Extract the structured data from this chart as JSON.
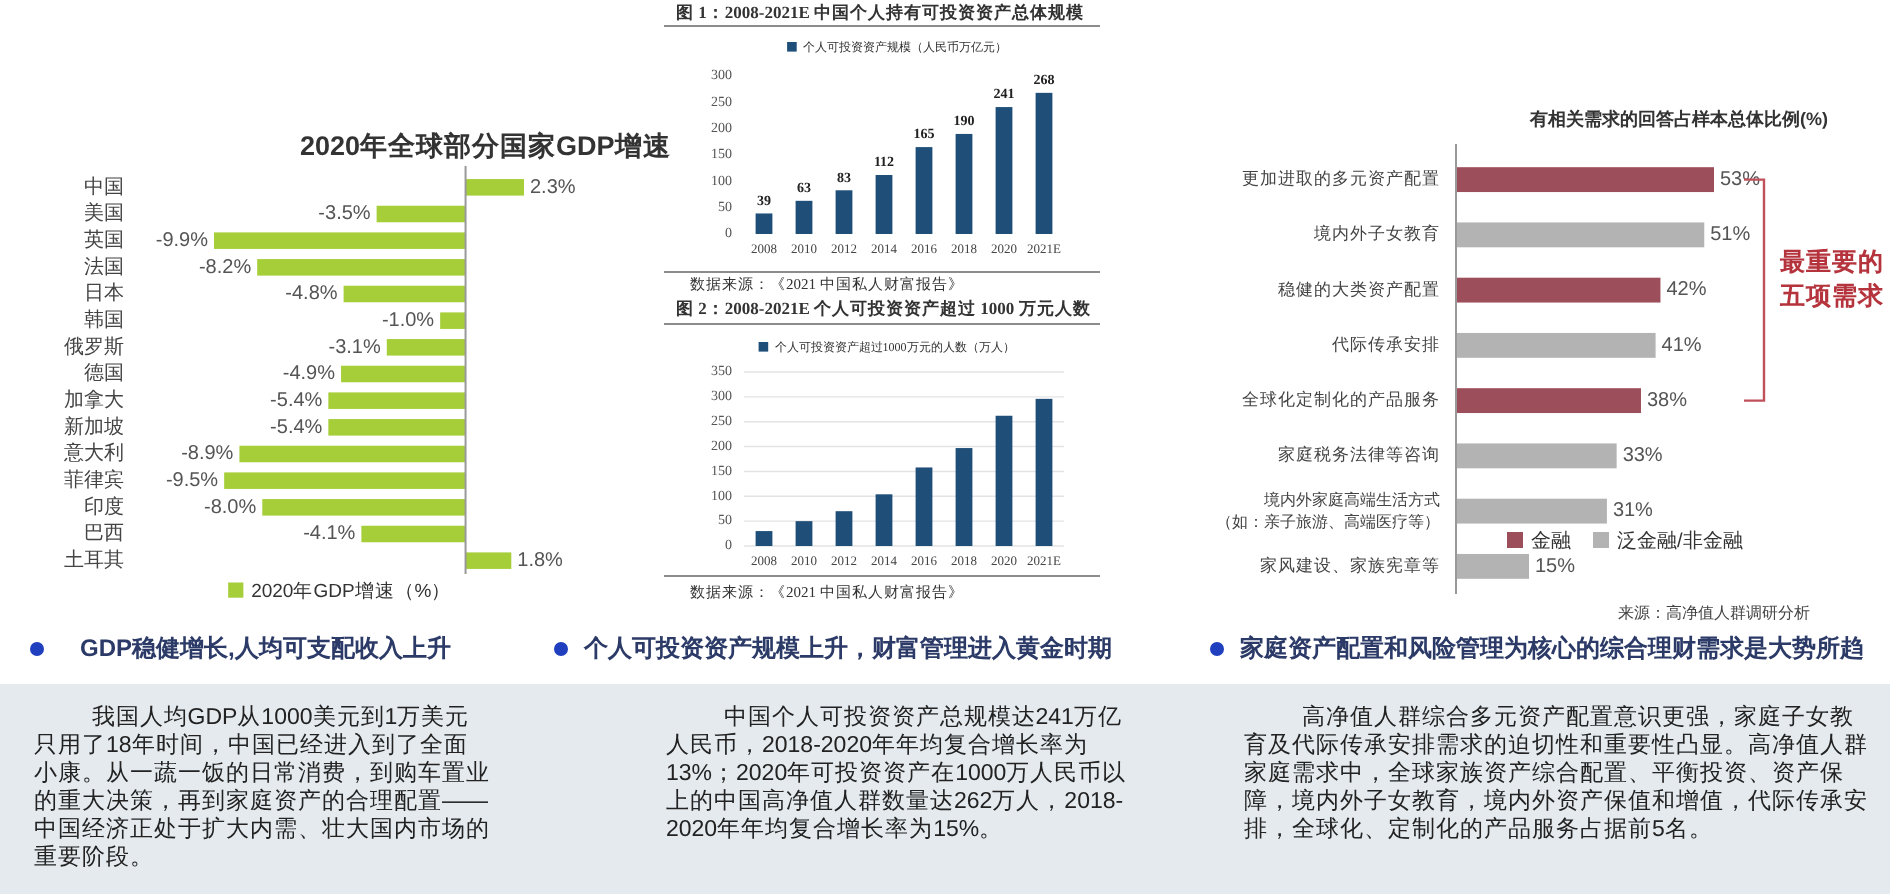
{
  "chart_data": [
    {
      "type": "bar",
      "orientation": "horizontal",
      "title": "2020年全球部分国家GDP增速",
      "categories": [
        "中国",
        "美国",
        "英国",
        "法国",
        "日本",
        "韩国",
        "俄罗斯",
        "德国",
        "加拿大",
        "新加坡",
        "意大利",
        "菲律宾",
        "印度",
        "巴西",
        "土耳其"
      ],
      "series": [
        {
          "name": "2020年GDP增速（%）",
          "color": "#a6ce39",
          "values": [
            2.3,
            -3.5,
            -9.9,
            -8.2,
            -4.8,
            -1.0,
            -3.1,
            -4.9,
            -5.4,
            -5.4,
            -8.9,
            -9.5,
            -8.0,
            -4.1,
            1.8
          ],
          "value_labels": [
            "2.3%",
            "-3.5%",
            "-9.9%",
            "-8.2%",
            "-4.8%",
            "-1.0%",
            "-3.1%",
            "-4.9%",
            "-5.4%",
            "-5.4%",
            "-8.9%",
            "-9.5%",
            "-8.0%",
            "-4.1%",
            "1.8%"
          ]
        }
      ],
      "legend": "bottom",
      "annotations": [
        "GDP稳健增长,人均可支配收入上升",
        "我国人均GDP从1000美元到1万美元只用了18年时间，中国已经进入到了全面小康。从一蔬一饭的日常消费，到购车置业的重大决策，再到家庭资产的合理配置——中国经济正处于扩大内需、壮大国内市场的重要阶段。"
      ]
    },
    {
      "type": "bar",
      "title": "图 1：2008-2021E 中国个人持有可投资资产总体规模",
      "categories": [
        "2008",
        "2010",
        "2012",
        "2014",
        "2016",
        "2018",
        "2020",
        "2021E"
      ],
      "series": [
        {
          "name": "个人可投资资产规模（人民币万亿元）",
          "color": "#1f4e79",
          "values": [
            39,
            63,
            83,
            112,
            165,
            190,
            241,
            268
          ]
        }
      ],
      "ylim": [
        0,
        300
      ],
      "yticks": [
        0,
        50,
        100,
        150,
        200,
        250,
        300
      ],
      "data_labels": true,
      "legend": "top",
      "annotations": [
        "数据来源：《2021 中国私人财富报告》"
      ]
    },
    {
      "type": "bar",
      "title": "图 2：2008-2021E 个人可投资资产超过 1000 万元人数",
      "categories": [
        "2008",
        "2010",
        "2012",
        "2014",
        "2016",
        "2018",
        "2020",
        "2021E"
      ],
      "series": [
        {
          "name": "个人可投资资产超过1000万元的人数（万人）",
          "color": "#1f4e79",
          "values": [
            30,
            50,
            70,
            104,
            158,
            197,
            262,
            296
          ]
        }
      ],
      "ylim": [
        0,
        350
      ],
      "yticks": [
        0,
        50,
        100,
        150,
        200,
        250,
        300,
        350
      ],
      "grid": "y",
      "legend": "top",
      "annotations": [
        "数据来源：《2021 中国私人财富报告》",
        "个人可投资资产规模上升，财富管理进入黄金时期",
        "中国个人可投资资产总规模达241万亿人民币，2018-2020年年均复合增长率为13%；2020年可投资资产在1000万人民币以上的中国高净值人群数量达262万人，2018-2020年年均复合增长率为15%。"
      ]
    },
    {
      "type": "bar",
      "orientation": "horizontal",
      "stacked": true,
      "title": "有相关需求的回答占样本总体比例(%)",
      "categories": [
        "更加进取的多元资产配置",
        "境内外子女教育",
        "稳健的大类资产配置",
        "代际传承安排",
        "全球化定制化的产品服务",
        "家庭税务法律等咨询",
        "境内外家庭高端生活方式（如：亲子旅游、高端医疗等）",
        "家风建设、家族宪章等"
      ],
      "series": [
        {
          "name": "金融",
          "color": "#9c4f5b",
          "values": [
            53,
            null,
            42,
            null,
            38,
            null,
            null,
            null
          ],
          "value_labels": [
            "53%",
            null,
            "42%",
            null,
            "38%",
            null,
            null,
            null
          ]
        },
        {
          "name": "泛金融/非金融",
          "color": "#b3b3b3",
          "values": [
            null,
            51,
            null,
            41,
            null,
            33,
            31,
            15
          ],
          "value_labels": [
            null,
            "51%",
            null,
            "41%",
            null,
            "33%",
            "31%",
            "15%"
          ]
        }
      ],
      "legend": "bottom right",
      "annotations": [
        "最重要的五项需求",
        "来源：高净值人群调研分析",
        "家庭资产配置和风险管理为核心的综合理财需求是大势所趋",
        "高净值人群综合多元资产配置意识更强，家庭子女教育及代际传承安排需求的迫切性和重要性凸显。高净值人群家庭需求中，全球家族资产综合配置、平衡投资、资产保障，境内外子女教育，境内外资产保值和增值，代际传承安排，全球化、定制化的产品服务占据前5名。"
      ]
    }
  ]
}
